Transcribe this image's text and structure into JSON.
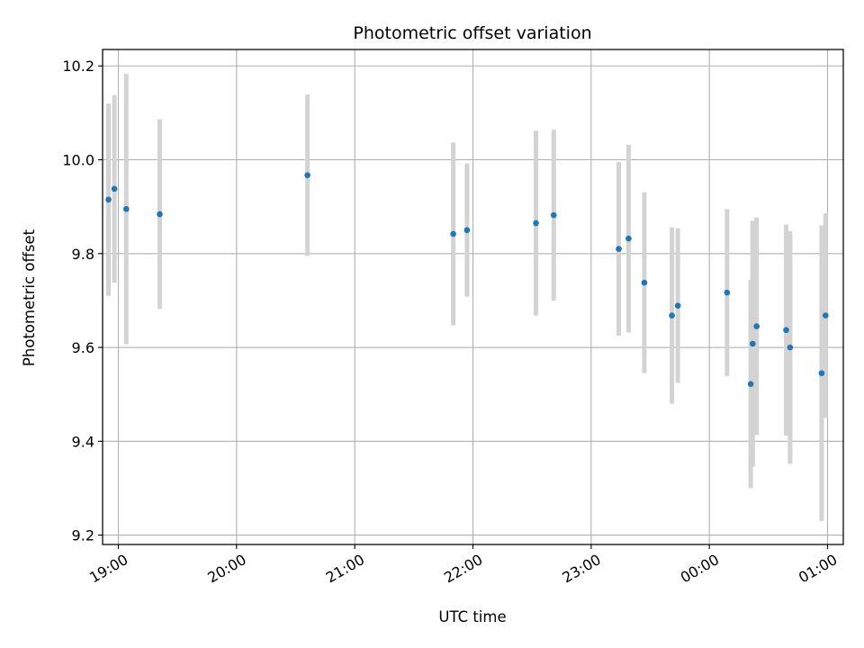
{
  "chart_data": {
    "type": "scatter",
    "title": "Photometric offset variation",
    "xlabel": "UTC time",
    "ylabel": "Photometric offset",
    "x_axis": "time",
    "xlim": [
      "18:52",
      "01:08"
    ],
    "ylim": [
      9.18,
      10.235
    ],
    "xticks": [
      "19:00",
      "20:00",
      "21:00",
      "22:00",
      "23:00",
      "00:00",
      "01:00"
    ],
    "yticks": [
      9.2,
      9.4,
      9.6,
      9.8,
      10.0,
      10.2
    ],
    "grid": true,
    "colors": {
      "point": "#1f77b4",
      "errorbar": "#d3d3d3",
      "grid": "#b0b0b0"
    },
    "points": [
      {
        "x": "18:55",
        "y": 9.915,
        "err": 0.205
      },
      {
        "x": "18:58",
        "y": 9.938,
        "err": 0.2
      },
      {
        "x": "19:04",
        "y": 9.895,
        "err": 0.288
      },
      {
        "x": "19:21",
        "y": 9.884,
        "err": 0.202
      },
      {
        "x": "20:36",
        "y": 9.967,
        "err": 0.172
      },
      {
        "x": "21:50",
        "y": 9.842,
        "err": 0.195
      },
      {
        "x": "21:57",
        "y": 9.85,
        "err": 0.142
      },
      {
        "x": "22:32",
        "y": 9.865,
        "err": 0.197
      },
      {
        "x": "22:41",
        "y": 9.882,
        "err": 0.182
      },
      {
        "x": "23:14",
        "y": 9.81,
        "err": 0.185
      },
      {
        "x": "23:19",
        "y": 9.832,
        "err": 0.2
      },
      {
        "x": "23:27",
        "y": 9.738,
        "err": 0.193
      },
      {
        "x": "23:41",
        "y": 9.668,
        "err": 0.188
      },
      {
        "x": "23:44",
        "y": 9.689,
        "err": 0.165
      },
      {
        "x": "00:09",
        "y": 9.717,
        "err": 0.178
      },
      {
        "x": "00:21",
        "y": 9.522,
        "err": 0.222
      },
      {
        "x": "00:22",
        "y": 9.608,
        "err": 0.262
      },
      {
        "x": "00:24",
        "y": 9.645,
        "err": 0.232
      },
      {
        "x": "00:39",
        "y": 9.637,
        "err": 0.225
      },
      {
        "x": "00:41",
        "y": 9.6,
        "err": 0.248
      },
      {
        "x": "00:57",
        "y": 9.545,
        "err": 0.315
      },
      {
        "x": "00:59",
        "y": 9.668,
        "err": 0.218
      }
    ]
  }
}
